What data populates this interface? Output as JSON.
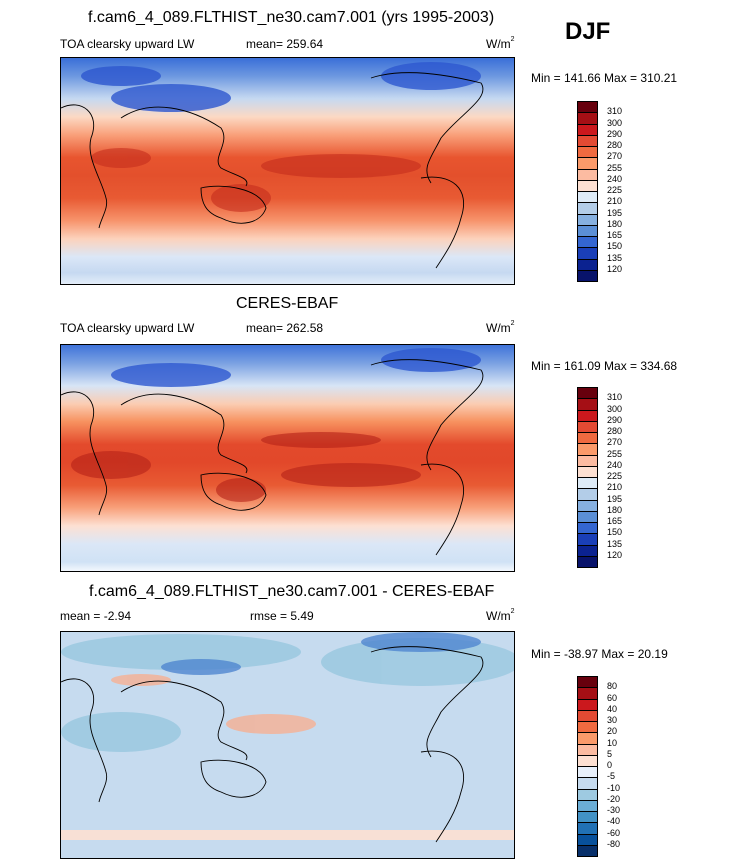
{
  "figure": {
    "title": "f.cam6_4_089.FLTHIST_ne30.cam7.001 (yrs 1995-2003)",
    "season": "DJF",
    "variable": "TOA clearsky upward LW",
    "units_base": "W/m",
    "units_exp": "2"
  },
  "panels": [
    {
      "id": "model",
      "header": "",
      "left_label": "TOA clearsky upward LW",
      "stat_label": "mean= 259.64",
      "units": "W/m",
      "minmax": "Min = 141.66 Max = 310.21",
      "colorbar_levels": [
        "310",
        "300",
        "290",
        "280",
        "270",
        "255",
        "240",
        "225",
        "210",
        "195",
        "180",
        "165",
        "150",
        "135",
        "120"
      ]
    },
    {
      "id": "obs",
      "header": "CERES-EBAF",
      "left_label": "TOA clearsky upward LW",
      "stat_label": "mean= 262.58",
      "units": "W/m",
      "minmax": "Min = 161.09 Max = 334.68",
      "colorbar_levels": [
        "310",
        "300",
        "290",
        "280",
        "270",
        "255",
        "240",
        "225",
        "210",
        "195",
        "180",
        "165",
        "150",
        "135",
        "120"
      ]
    },
    {
      "id": "diff",
      "header": "f.cam6_4_089.FLTHIST_ne30.cam7.001 - CERES-EBAF",
      "left_label": "mean =  -2.94",
      "stat_label": "rmse =   5.49",
      "units": "W/m",
      "minmax": "Min = -38.97 Max =  20.19",
      "colorbar_levels": [
        "80",
        "60",
        "40",
        "30",
        "20",
        "10",
        "5",
        "0",
        "-5",
        "-10",
        "-20",
        "-30",
        "-40",
        "-60",
        "-80"
      ]
    }
  ],
  "colors": {
    "abs_scale": [
      "#67000d",
      "#a50f15",
      "#cb181d",
      "#e34a33",
      "#f06a40",
      "#fb9a6a",
      "#fcbba1",
      "#fde0d2",
      "#deebf7",
      "#b3cde8",
      "#86b0e0",
      "#5b8fd6",
      "#3466d1",
      "#1a3fb8",
      "#0b2290",
      "#08136b"
    ],
    "diff_scale": [
      "#67000d",
      "#a50f15",
      "#cb181d",
      "#e34a33",
      "#f06a40",
      "#fb9a6a",
      "#fcbba1",
      "#fde0d2",
      "#e8f0fb",
      "#c6dbef",
      "#9ecae1",
      "#6baed6",
      "#4292c6",
      "#2171b5",
      "#08519c",
      "#08306b"
    ]
  },
  "chart_data": [
    {
      "type": "heatmap",
      "title": "f.cam6_4_089.FLTHIST_ne30.cam7.001 (yrs 1995-2003)",
      "subtitle": "TOA clearsky upward LW",
      "season": "DJF",
      "units": "W/m^2",
      "mean": 259.64,
      "min": 141.66,
      "max": 310.21,
      "levels": [
        120,
        135,
        150,
        165,
        180,
        195,
        210,
        225,
        240,
        255,
        270,
        280,
        290,
        300,
        310
      ]
    },
    {
      "type": "heatmap",
      "title": "CERES-EBAF",
      "subtitle": "TOA clearsky upward LW",
      "season": "DJF",
      "units": "W/m^2",
      "mean": 262.58,
      "min": 161.09,
      "max": 334.68,
      "levels": [
        120,
        135,
        150,
        165,
        180,
        195,
        210,
        225,
        240,
        255,
        270,
        280,
        290,
        300,
        310
      ]
    },
    {
      "type": "heatmap",
      "title": "f.cam6_4_089.FLTHIST_ne30.cam7.001 - CERES-EBAF",
      "season": "DJF",
      "units": "W/m^2",
      "mean": -2.94,
      "rmse": 5.49,
      "min": -38.97,
      "max": 20.19,
      "levels": [
        -80,
        -60,
        -40,
        -30,
        -20,
        -10,
        -5,
        0,
        5,
        10,
        20,
        30,
        40,
        60,
        80
      ]
    }
  ]
}
